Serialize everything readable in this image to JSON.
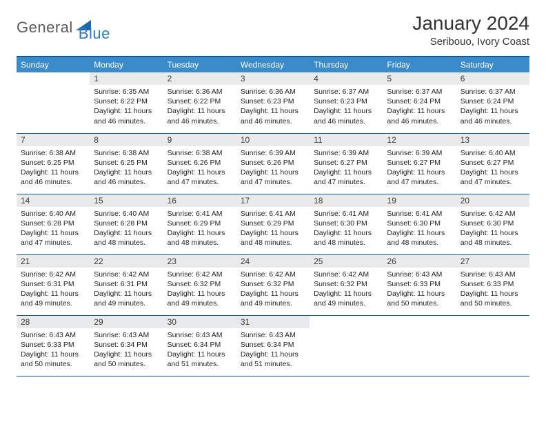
{
  "logo": {
    "text1": "General",
    "text2": "Blue"
  },
  "colors": {
    "header_bg": "#3b8bca",
    "header_border": "#0a5a9e",
    "daynum_bg": "#e8eaec",
    "logo_gray": "#5a5a5a",
    "logo_blue": "#2b79c2",
    "logo_triangle": "#1f66a8"
  },
  "title": "January 2024",
  "location": "Seribouo, Ivory Coast",
  "day_headers": [
    "Sunday",
    "Monday",
    "Tuesday",
    "Wednesday",
    "Thursday",
    "Friday",
    "Saturday"
  ],
  "weeks": [
    [
      null,
      {
        "n": "1",
        "sunrise": "6:35 AM",
        "sunset": "6:22 PM",
        "daylight": "11 hours and 46 minutes."
      },
      {
        "n": "2",
        "sunrise": "6:36 AM",
        "sunset": "6:22 PM",
        "daylight": "11 hours and 46 minutes."
      },
      {
        "n": "3",
        "sunrise": "6:36 AM",
        "sunset": "6:23 PM",
        "daylight": "11 hours and 46 minutes."
      },
      {
        "n": "4",
        "sunrise": "6:37 AM",
        "sunset": "6:23 PM",
        "daylight": "11 hours and 46 minutes."
      },
      {
        "n": "5",
        "sunrise": "6:37 AM",
        "sunset": "6:24 PM",
        "daylight": "11 hours and 46 minutes."
      },
      {
        "n": "6",
        "sunrise": "6:37 AM",
        "sunset": "6:24 PM",
        "daylight": "11 hours and 46 minutes."
      }
    ],
    [
      {
        "n": "7",
        "sunrise": "6:38 AM",
        "sunset": "6:25 PM",
        "daylight": "11 hours and 46 minutes."
      },
      {
        "n": "8",
        "sunrise": "6:38 AM",
        "sunset": "6:25 PM",
        "daylight": "11 hours and 46 minutes."
      },
      {
        "n": "9",
        "sunrise": "6:38 AM",
        "sunset": "6:26 PM",
        "daylight": "11 hours and 47 minutes."
      },
      {
        "n": "10",
        "sunrise": "6:39 AM",
        "sunset": "6:26 PM",
        "daylight": "11 hours and 47 minutes."
      },
      {
        "n": "11",
        "sunrise": "6:39 AM",
        "sunset": "6:27 PM",
        "daylight": "11 hours and 47 minutes."
      },
      {
        "n": "12",
        "sunrise": "6:39 AM",
        "sunset": "6:27 PM",
        "daylight": "11 hours and 47 minutes."
      },
      {
        "n": "13",
        "sunrise": "6:40 AM",
        "sunset": "6:27 PM",
        "daylight": "11 hours and 47 minutes."
      }
    ],
    [
      {
        "n": "14",
        "sunrise": "6:40 AM",
        "sunset": "6:28 PM",
        "daylight": "11 hours and 47 minutes."
      },
      {
        "n": "15",
        "sunrise": "6:40 AM",
        "sunset": "6:28 PM",
        "daylight": "11 hours and 48 minutes."
      },
      {
        "n": "16",
        "sunrise": "6:41 AM",
        "sunset": "6:29 PM",
        "daylight": "11 hours and 48 minutes."
      },
      {
        "n": "17",
        "sunrise": "6:41 AM",
        "sunset": "6:29 PM",
        "daylight": "11 hours and 48 minutes."
      },
      {
        "n": "18",
        "sunrise": "6:41 AM",
        "sunset": "6:30 PM",
        "daylight": "11 hours and 48 minutes."
      },
      {
        "n": "19",
        "sunrise": "6:41 AM",
        "sunset": "6:30 PM",
        "daylight": "11 hours and 48 minutes."
      },
      {
        "n": "20",
        "sunrise": "6:42 AM",
        "sunset": "6:30 PM",
        "daylight": "11 hours and 48 minutes."
      }
    ],
    [
      {
        "n": "21",
        "sunrise": "6:42 AM",
        "sunset": "6:31 PM",
        "daylight": "11 hours and 49 minutes."
      },
      {
        "n": "22",
        "sunrise": "6:42 AM",
        "sunset": "6:31 PM",
        "daylight": "11 hours and 49 minutes."
      },
      {
        "n": "23",
        "sunrise": "6:42 AM",
        "sunset": "6:32 PM",
        "daylight": "11 hours and 49 minutes."
      },
      {
        "n": "24",
        "sunrise": "6:42 AM",
        "sunset": "6:32 PM",
        "daylight": "11 hours and 49 minutes."
      },
      {
        "n": "25",
        "sunrise": "6:42 AM",
        "sunset": "6:32 PM",
        "daylight": "11 hours and 49 minutes."
      },
      {
        "n": "26",
        "sunrise": "6:43 AM",
        "sunset": "6:33 PM",
        "daylight": "11 hours and 50 minutes."
      },
      {
        "n": "27",
        "sunrise": "6:43 AM",
        "sunset": "6:33 PM",
        "daylight": "11 hours and 50 minutes."
      }
    ],
    [
      {
        "n": "28",
        "sunrise": "6:43 AM",
        "sunset": "6:33 PM",
        "daylight": "11 hours and 50 minutes."
      },
      {
        "n": "29",
        "sunrise": "6:43 AM",
        "sunset": "6:34 PM",
        "daylight": "11 hours and 50 minutes."
      },
      {
        "n": "30",
        "sunrise": "6:43 AM",
        "sunset": "6:34 PM",
        "daylight": "11 hours and 51 minutes."
      },
      {
        "n": "31",
        "sunrise": "6:43 AM",
        "sunset": "6:34 PM",
        "daylight": "11 hours and 51 minutes."
      },
      null,
      null,
      null
    ]
  ],
  "labels": {
    "sunrise": "Sunrise:",
    "sunset": "Sunset:",
    "daylight": "Daylight:"
  }
}
